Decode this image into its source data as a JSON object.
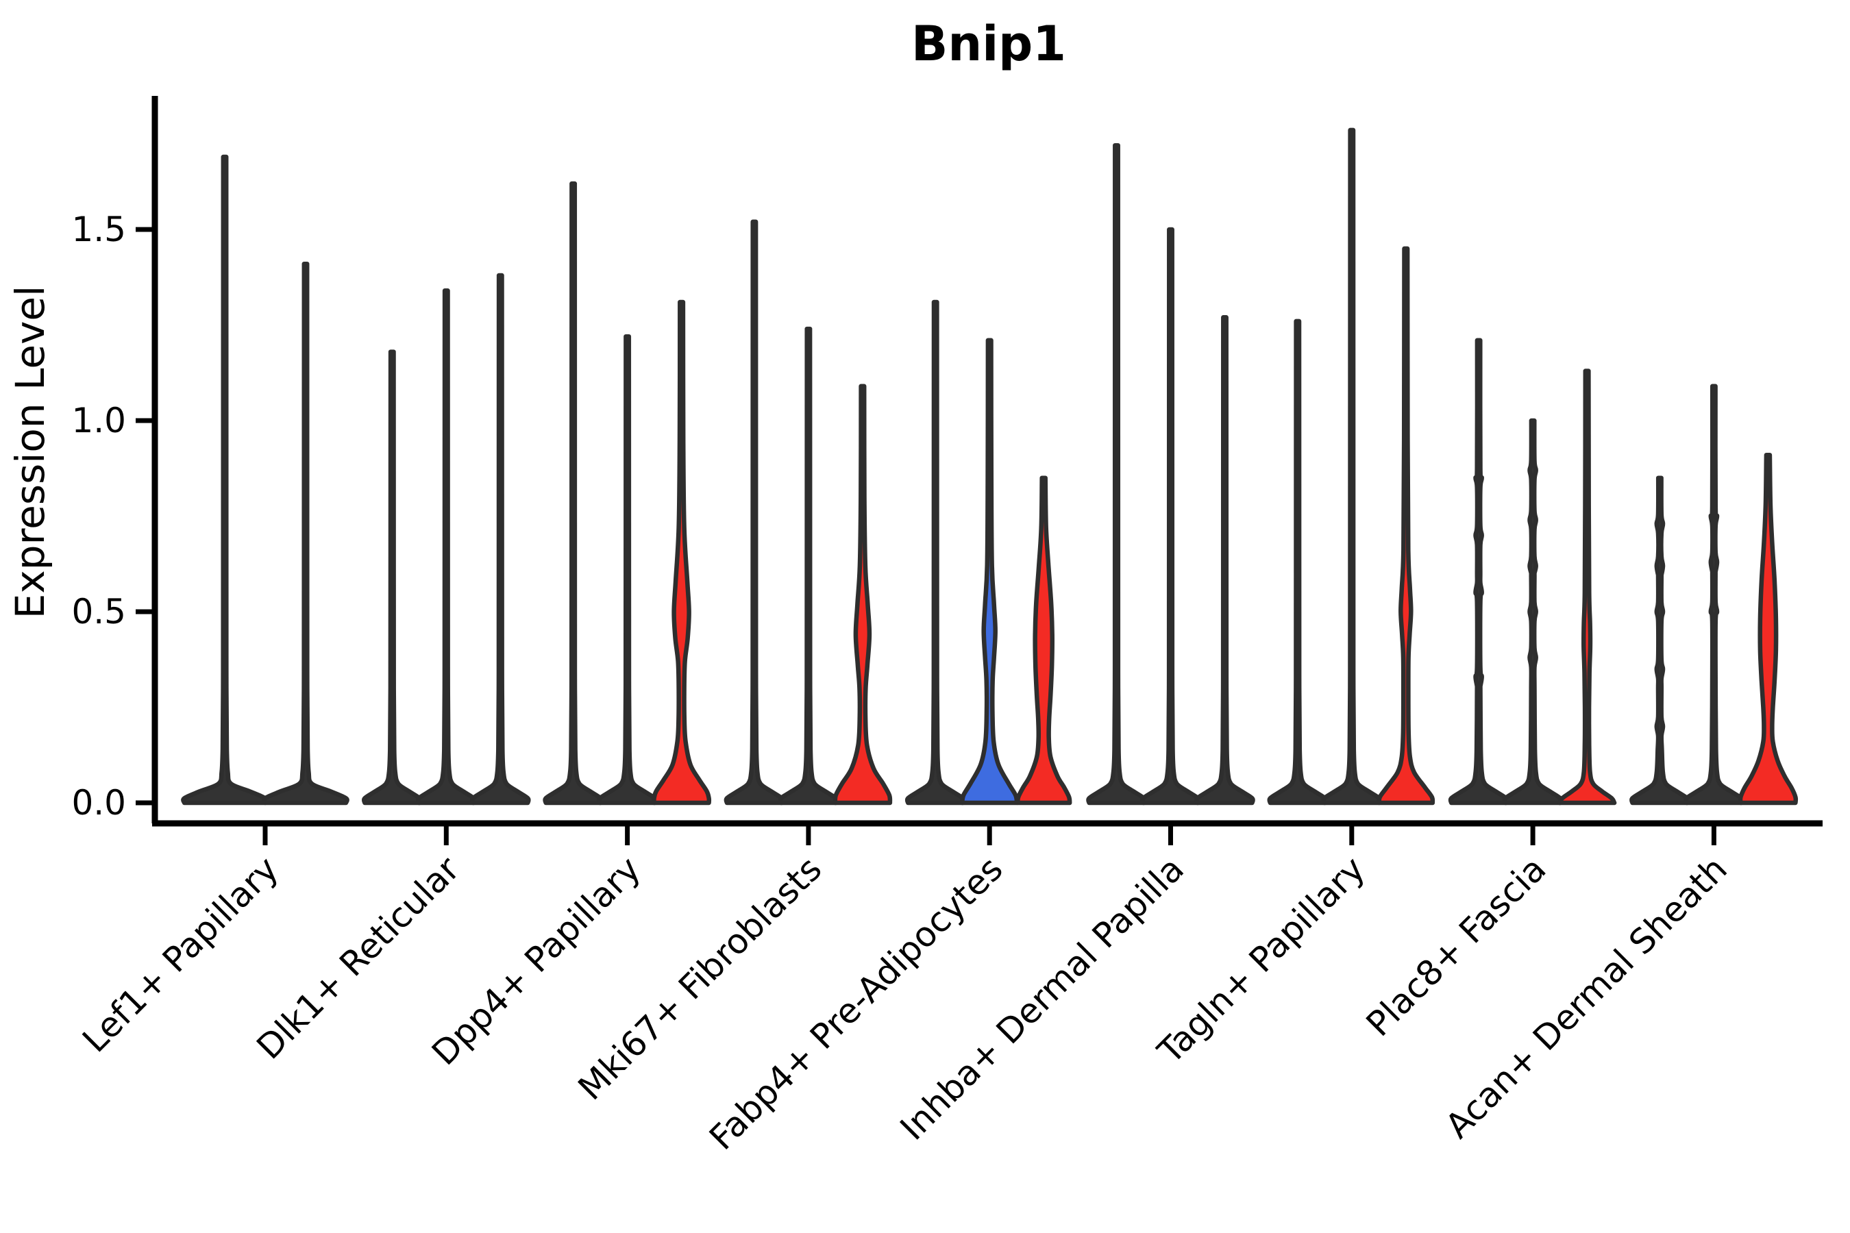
{
  "title": "Bnip1",
  "ylabel": "Expression Level",
  "colors": {
    "red": "#f32b24",
    "blue": "#3e6ce0",
    "edge": "#2e2e2e",
    "dark_fill": "#333333",
    "axis": "#000000",
    "text": "#000000",
    "background": "#ffffff"
  },
  "chart_data": {
    "type": "violin",
    "title": "Bnip1",
    "xlabel": "",
    "ylabel": "Expression Level",
    "ylim": [
      0,
      1.85
    ],
    "yticks": [
      0.0,
      0.5,
      1.0,
      1.5
    ],
    "ytick_labels": [
      "0.0",
      "0.5",
      "1.0",
      "1.5"
    ],
    "grid": false,
    "legend": "none",
    "categories": [
      "Lef1+ Papillary",
      "Dlk1+ Reticular",
      "Dpp4+ Papillary",
      "Mki67+ Fibroblasts",
      "Fabp4+ Pre-Adipocytes",
      "Inhba+ Dermal Papilla",
      "Tagln+ Papillary",
      "Plac8+ Fascia",
      "Acan+ Dermal Sheath"
    ],
    "groups": [
      {
        "label": "Lef1+ Papillary",
        "violins": [
          {
            "max": 1.69,
            "fill": "dark"
          },
          {
            "max": 1.41,
            "fill": "dark"
          }
        ]
      },
      {
        "label": "Dlk1+ Reticular",
        "violins": [
          {
            "max": 1.18,
            "fill": "dark"
          },
          {
            "max": 1.34,
            "fill": "dark"
          },
          {
            "max": 1.38,
            "fill": "dark"
          }
        ]
      },
      {
        "label": "Dpp4+ Papillary",
        "violins": [
          {
            "max": 1.62,
            "fill": "dark"
          },
          {
            "max": 1.22,
            "fill": "dark"
          },
          {
            "max": 1.31,
            "fill": "red",
            "shape": [
              [
                1.31,
                2.3
              ],
              [
                0.95,
                2.6
              ],
              [
                0.72,
                4
              ],
              [
                0.58,
                8.5
              ],
              [
                0.5,
                11
              ],
              [
                0.43,
                9
              ],
              [
                0.37,
                5
              ],
              [
                0.3,
                4
              ],
              [
                0.22,
                4.2
              ],
              [
                0.16,
                6
              ],
              [
                0.1,
                13
              ],
              [
                0.06,
                26
              ],
              [
                0.03,
                37
              ],
              [
                0.012,
                40
              ],
              [
                0,
                40
              ]
            ]
          }
        ]
      },
      {
        "label": "Mki67+ Fibroblasts",
        "violins": [
          {
            "max": 1.52,
            "fill": "dark"
          },
          {
            "max": 1.24,
            "fill": "dark"
          },
          {
            "max": 1.09,
            "fill": "red",
            "shape": [
              [
                1.09,
                2.3
              ],
              [
                0.8,
                2.6
              ],
              [
                0.62,
                4
              ],
              [
                0.52,
                7.5
              ],
              [
                0.44,
                10
              ],
              [
                0.36,
                7
              ],
              [
                0.3,
                4.5
              ],
              [
                0.22,
                4.2
              ],
              [
                0.15,
                6.5
              ],
              [
                0.09,
                16
              ],
              [
                0.05,
                30
              ],
              [
                0.02,
                39
              ],
              [
                0,
                40
              ]
            ]
          }
        ]
      },
      {
        "label": "Fabp4+ Pre-Adipocytes",
        "violins": [
          {
            "max": 1.31,
            "fill": "dark"
          },
          {
            "max": 1.21,
            "fill": "blue",
            "shape": [
              [
                1.21,
                2.3
              ],
              [
                0.85,
                2.6
              ],
              [
                0.62,
                3.5
              ],
              [
                0.52,
                6.5
              ],
              [
                0.45,
                8.5
              ],
              [
                0.38,
                6.5
              ],
              [
                0.32,
                4.5
              ],
              [
                0.24,
                4.2
              ],
              [
                0.16,
                6
              ],
              [
                0.1,
                13
              ],
              [
                0.05,
                28
              ],
              [
                0.02,
                38
              ],
              [
                0,
                40
              ]
            ]
          },
          {
            "max": 0.85,
            "fill": "red",
            "shape": [
              [
                0.85,
                2.5
              ],
              [
                0.72,
                3.5
              ],
              [
                0.62,
                7
              ],
              [
                0.52,
                11
              ],
              [
                0.44,
                12.5
              ],
              [
                0.36,
                12
              ],
              [
                0.28,
                10
              ],
              [
                0.22,
                8
              ],
              [
                0.17,
                7.5
              ],
              [
                0.12,
                10
              ],
              [
                0.07,
                20
              ],
              [
                0.04,
                30
              ],
              [
                0.015,
                37
              ],
              [
                0,
                38
              ]
            ]
          }
        ]
      },
      {
        "label": "Inhba+ Dermal Papilla",
        "violins": [
          {
            "max": 1.72,
            "fill": "dark"
          },
          {
            "max": 1.5,
            "fill": "dark"
          },
          {
            "max": 1.27,
            "fill": "dark"
          }
        ]
      },
      {
        "label": "Tagln+ Papillary",
        "violins": [
          {
            "max": 1.26,
            "fill": "dark"
          },
          {
            "max": 1.76,
            "fill": "dark"
          },
          {
            "max": 1.45,
            "fill": "red",
            "shape": [
              [
                1.45,
                2.3
              ],
              [
                0.95,
                2.6
              ],
              [
                0.66,
                3.5
              ],
              [
                0.56,
                6
              ],
              [
                0.5,
                7.5
              ],
              [
                0.44,
                5.5
              ],
              [
                0.38,
                3.8
              ],
              [
                0.28,
                3.6
              ],
              [
                0.18,
                4
              ],
              [
                0.12,
                6
              ],
              [
                0.08,
                12
              ],
              [
                0.04,
                28
              ],
              [
                0.015,
                38
              ],
              [
                0,
                39
              ]
            ]
          }
        ]
      },
      {
        "label": "Plac8+ Fascia",
        "violins": [
          {
            "max": 1.21,
            "fill": "dark",
            "nubs": [
              0.85,
              0.7,
              0.55,
              0.33
            ]
          },
          {
            "max": 1.0,
            "fill": "dark",
            "nubs": [
              0.87,
              0.74,
              0.62,
              0.5,
              0.38
            ]
          },
          {
            "max": 1.13,
            "fill": "red",
            "shape": [
              [
                1.13,
                2.3
              ],
              [
                0.78,
                2.6
              ],
              [
                0.55,
                3.2
              ],
              [
                0.47,
                4.5
              ],
              [
                0.41,
                4.8
              ],
              [
                0.34,
                3.6
              ],
              [
                0.25,
                3
              ],
              [
                0.15,
                3.2
              ],
              [
                0.08,
                4.5
              ],
              [
                0.05,
                9
              ],
              [
                0.03,
                22
              ],
              [
                0.012,
                36
              ],
              [
                0,
                40
              ]
            ]
          }
        ]
      },
      {
        "label": "Acan+ Dermal Sheath",
        "violins": [
          {
            "max": 0.85,
            "fill": "dark",
            "nubs": [
              0.73,
              0.62,
              0.5,
              0.35,
              0.2
            ]
          },
          {
            "max": 1.09,
            "fill": "dark",
            "nubs": [
              0.75,
              0.63,
              0.5
            ]
          },
          {
            "max": 0.91,
            "fill": "red",
            "shape": [
              [
                0.91,
                2.5
              ],
              [
                0.78,
                3.5
              ],
              [
                0.68,
                6
              ],
              [
                0.58,
                9.5
              ],
              [
                0.48,
                11.5
              ],
              [
                0.4,
                11.5
              ],
              [
                0.32,
                9.5
              ],
              [
                0.25,
                7
              ],
              [
                0.2,
                6
              ],
              [
                0.16,
                7
              ],
              [
                0.11,
                14
              ],
              [
                0.07,
                24
              ],
              [
                0.04,
                34
              ],
              [
                0.015,
                40
              ],
              [
                0,
                40
              ]
            ]
          }
        ]
      }
    ]
  }
}
